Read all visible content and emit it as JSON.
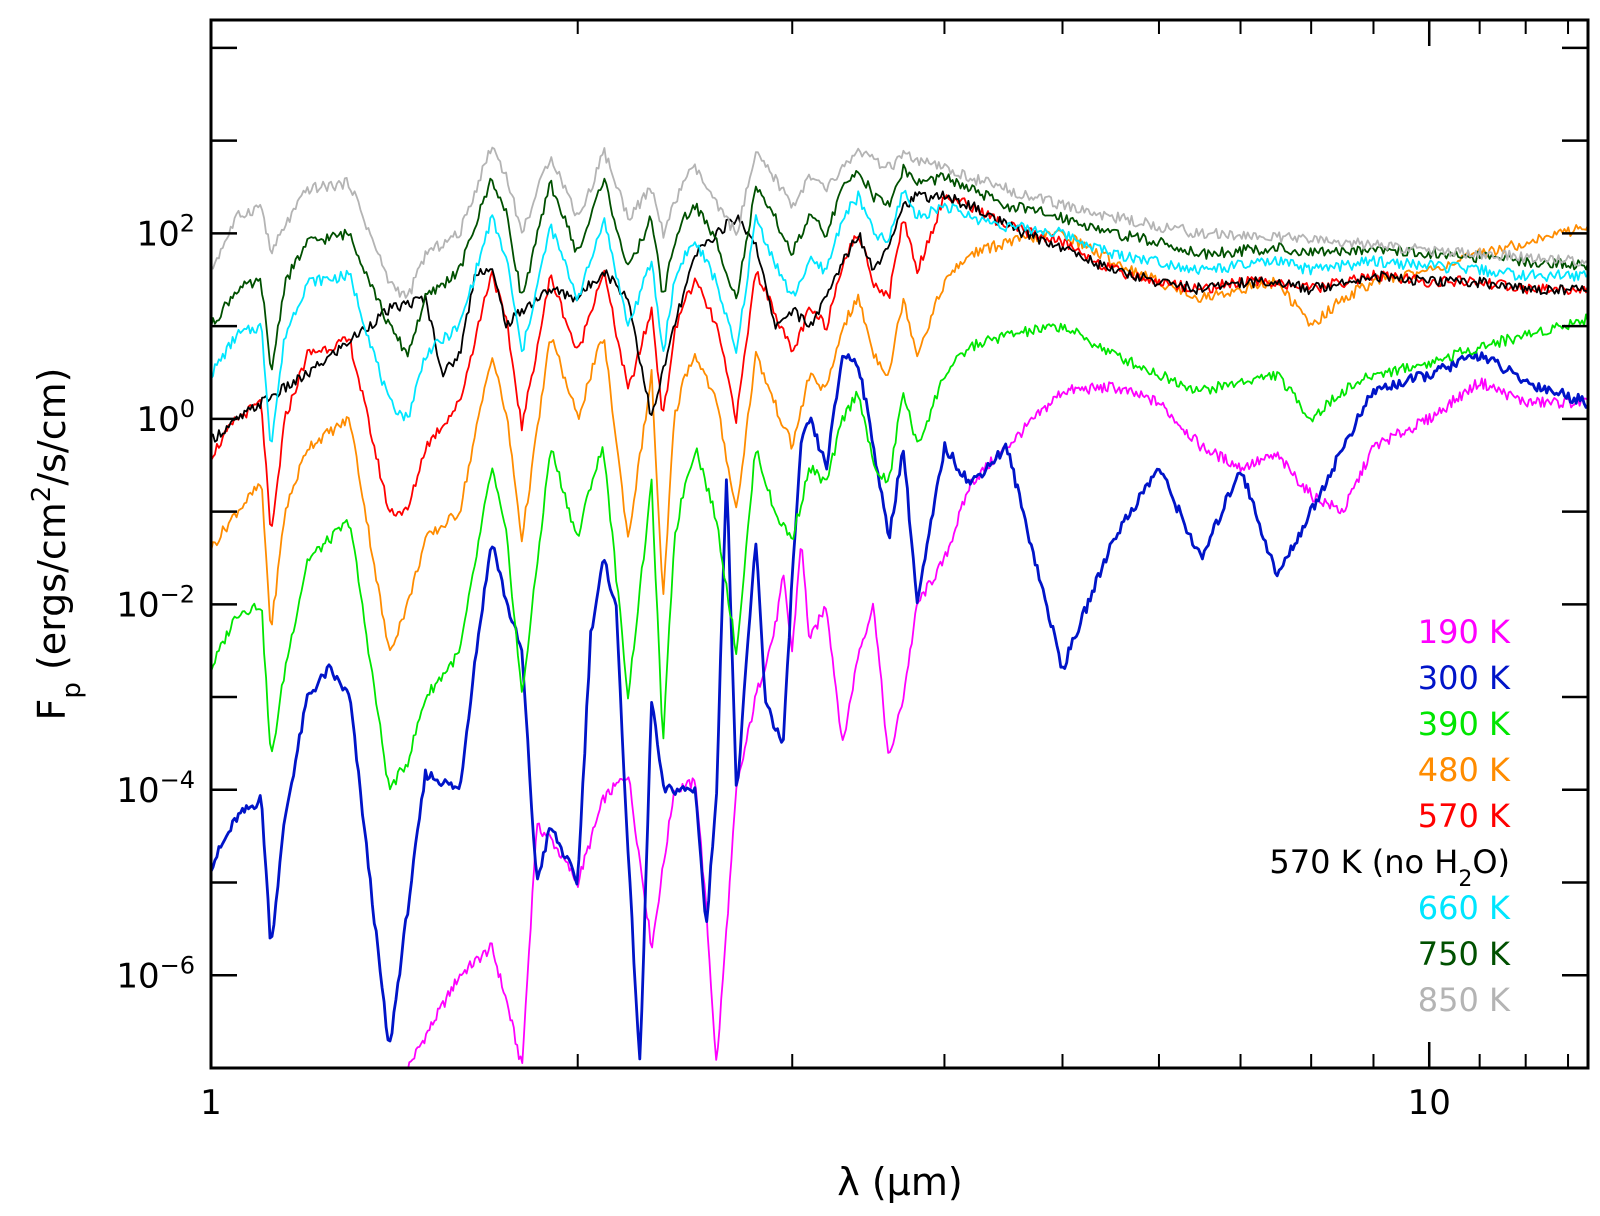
{
  "chart_data": {
    "type": "line",
    "title": "",
    "xlabel": "λ (μm)",
    "ylabel": "F_p (ergs/cm²/s/cm)",
    "x_scale": "log",
    "y_scale": "log",
    "xlim": [
      1.0,
      13.5
    ],
    "ylim": [
      1e-07,
      20000
    ],
    "x_ticks": [
      {
        "value": 1,
        "label": "1"
      },
      {
        "value": 10,
        "label": "10"
      }
    ],
    "y_ticks": [
      {
        "value": 1e-06,
        "base": "10",
        "exp": "−6"
      },
      {
        "value": 0.0001,
        "base": "10",
        "exp": "−4"
      },
      {
        "value": 0.01,
        "base": "10",
        "exp": "−2"
      },
      {
        "value": 1,
        "base": "10",
        "exp": "0"
      },
      {
        "value": 100,
        "base": "10",
        "exp": "2"
      }
    ],
    "grid": false,
    "legend_position": "bottom-right",
    "series": [
      {
        "name": "190 K",
        "color": "#ff00ff",
        "x": [
          1.45,
          1.6,
          1.7,
          1.75,
          1.8,
          1.85,
          1.9,
          2.0,
          2.1,
          2.2,
          2.3,
          2.4,
          2.5,
          2.55,
          2.6,
          2.7,
          2.8,
          2.9,
          2.95,
          3.0,
          3.05,
          3.1,
          3.2,
          3.3,
          3.4,
          3.5,
          3.6,
          3.7,
          3.8,
          4.0,
          4.2,
          4.5,
          5.0,
          5.5,
          6.0,
          6.5,
          7.0,
          7.5,
          8.0,
          8.5,
          9.0,
          10.0,
          11.0,
          12.0,
          13.5
        ],
        "y": [
          1e-07,
          1e-06,
          2e-06,
          5e-07,
          1e-07,
          4e-05,
          3e-05,
          1e-05,
          8e-05,
          0.00015,
          2e-06,
          0.0001,
          0.00012,
          5e-06,
          1e-07,
          0.0001,
          0.001,
          0.005,
          0.02,
          0.003,
          0.05,
          0.004,
          0.01,
          0.0003,
          0.003,
          0.01,
          0.0002,
          0.001,
          0.01,
          0.03,
          0.2,
          0.5,
          2.0,
          2.2,
          1.5,
          0.5,
          0.3,
          0.4,
          0.15,
          0.1,
          0.5,
          1.0,
          2.5,
          1.5,
          1.5
        ]
      },
      {
        "name": "300 K",
        "color": "#0014c8",
        "x": [
          1.0,
          1.05,
          1.1,
          1.12,
          1.15,
          1.2,
          1.25,
          1.3,
          1.4,
          1.5,
          1.6,
          1.65,
          1.7,
          1.75,
          1.8,
          1.85,
          1.9,
          2.0,
          2.05,
          2.1,
          2.15,
          2.2,
          2.25,
          2.3,
          2.35,
          2.4,
          2.45,
          2.5,
          2.55,
          2.6,
          2.65,
          2.7,
          2.8,
          2.85,
          2.9,
          2.95,
          3.0,
          3.05,
          3.1,
          3.2,
          3.3,
          3.4,
          3.5,
          3.6,
          3.7,
          3.8,
          4.0,
          4.2,
          4.5,
          5.0,
          5.5,
          6.0,
          6.5,
          7.0,
          7.5,
          8.0,
          8.5,
          9.0,
          10.0,
          11.0,
          12.0,
          13.5
        ],
        "y": [
          1.5e-05,
          5e-05,
          8e-05,
          2e-06,
          5e-05,
          0.001,
          0.002,
          0.001,
          1.5e-07,
          0.00015,
          0.0001,
          0.003,
          0.05,
          0.01,
          0.003,
          1e-05,
          4e-05,
          1e-05,
          0.005,
          0.03,
          0.01,
          2e-05,
          1e-07,
          0.001,
          0.0001,
          0.0001,
          0.0001,
          0.0001,
          3e-06,
          0.0001,
          0.3,
          8e-05,
          0.05,
          0.001,
          0.0005,
          0.0003,
          0.02,
          0.5,
          1.0,
          0.3,
          5.0,
          4.0,
          0.5,
          0.05,
          0.5,
          0.01,
          0.5,
          0.2,
          0.5,
          0.002,
          0.05,
          0.3,
          0.03,
          0.3,
          0.02,
          0.1,
          0.5,
          2.0,
          3.0,
          5.0,
          2.5,
          1.5
        ]
      },
      {
        "name": "390 K",
        "color": "#00e600",
        "x": [
          1.0,
          1.05,
          1.1,
          1.12,
          1.15,
          1.2,
          1.3,
          1.4,
          1.45,
          1.5,
          1.6,
          1.7,
          1.75,
          1.8,
          1.9,
          2.0,
          2.05,
          2.1,
          2.2,
          2.3,
          2.35,
          2.4,
          2.45,
          2.5,
          2.6,
          2.7,
          2.8,
          2.9,
          3.0,
          3.1,
          3.2,
          3.3,
          3.4,
          3.5,
          3.6,
          3.7,
          3.8,
          4.0,
          4.2,
          4.5,
          5.0,
          5.5,
          6.0,
          6.5,
          7.0,
          7.5,
          8.0,
          8.5,
          9.0,
          10.0,
          11.0,
          12.0,
          13.5
        ],
        "y": [
          0.002,
          0.008,
          0.01,
          0.0002,
          0.002,
          0.03,
          0.08,
          0.0001,
          0.0002,
          0.001,
          0.003,
          0.3,
          0.05,
          0.001,
          0.5,
          0.05,
          0.2,
          0.5,
          0.001,
          0.2,
          0.0003,
          0.05,
          0.2,
          0.5,
          0.08,
          0.003,
          0.5,
          0.1,
          0.05,
          0.3,
          0.2,
          1.0,
          2.0,
          0.3,
          0.2,
          2.0,
          0.5,
          3.0,
          6.0,
          8.0,
          10.0,
          5.0,
          3.0,
          2.0,
          2.5,
          3.0,
          1.0,
          2.0,
          3.0,
          4.0,
          6.0,
          8.0,
          12.0
        ]
      },
      {
        "name": "480 K",
        "color": "#ff8c00",
        "x": [
          1.0,
          1.05,
          1.1,
          1.12,
          1.15,
          1.2,
          1.3,
          1.4,
          1.45,
          1.5,
          1.6,
          1.7,
          1.75,
          1.8,
          1.9,
          2.0,
          2.05,
          2.1,
          2.2,
          2.3,
          2.35,
          2.4,
          2.45,
          2.5,
          2.6,
          2.7,
          2.8,
          2.9,
          3.0,
          3.1,
          3.2,
          3.3,
          3.4,
          3.5,
          3.6,
          3.7,
          3.8,
          4.0,
          4.2,
          4.5,
          5.0,
          5.5,
          6.0,
          6.5,
          7.0,
          7.5,
          8.0,
          8.5,
          9.0,
          10.0,
          11.0,
          12.0,
          13.5
        ],
        "y": [
          0.04,
          0.1,
          0.2,
          0.005,
          0.1,
          0.5,
          1.0,
          0.003,
          0.01,
          0.05,
          0.1,
          5.0,
          1.0,
          0.05,
          8.0,
          1.0,
          3.0,
          8.0,
          0.05,
          3.0,
          0.01,
          1.0,
          3.0,
          5.0,
          1.5,
          0.1,
          5.0,
          1.5,
          0.5,
          3.0,
          2.0,
          10.0,
          20.0,
          5.0,
          3.0,
          20.0,
          5.0,
          30.0,
          60.0,
          80.0,
          100.0,
          50.0,
          30.0,
          20.0,
          25.0,
          30.0,
          10.0,
          20.0,
          30.0,
          40.0,
          60.0,
          80.0,
          120.0
        ]
      },
      {
        "name": "570 K",
        "color": "#ff0000",
        "x": [
          1.0,
          1.05,
          1.1,
          1.12,
          1.15,
          1.2,
          1.3,
          1.4,
          1.45,
          1.5,
          1.6,
          1.7,
          1.75,
          1.8,
          1.9,
          2.0,
          2.05,
          2.1,
          2.2,
          2.3,
          2.35,
          2.4,
          2.45,
          2.5,
          2.6,
          2.7,
          2.8,
          2.9,
          3.0,
          3.1,
          3.2,
          3.3,
          3.4,
          3.5,
          3.6,
          3.7,
          3.8,
          4.0,
          4.2,
          4.5,
          5.0,
          5.5,
          6.0,
          6.5,
          7.0,
          7.5,
          8.0,
          8.5,
          9.0,
          10.0,
          11.0,
          12.0,
          13.5
        ],
        "y": [
          0.4,
          1.0,
          1.5,
          0.05,
          1.0,
          5.0,
          7.0,
          0.1,
          0.1,
          0.5,
          1.5,
          40.0,
          10.0,
          0.8,
          35.0,
          5.0,
          15.0,
          40.0,
          2.0,
          15.0,
          1.0,
          8.0,
          20.0,
          30.0,
          10.0,
          1.0,
          40.0,
          15.0,
          5.0,
          15.0,
          10.0,
          50.0,
          100.0,
          30.0,
          20.0,
          150.0,
          40.0,
          250.0,
          200.0,
          120.0,
          80.0,
          40.0,
          30.0,
          25.0,
          30.0,
          30.0,
          25.0,
          30.0,
          35.0,
          30.0,
          30.0,
          25.0,
          25.0
        ]
      },
      {
        "name": "570 K (no H2O)",
        "label_main": "570 K (no H",
        "label_sub": "2",
        "label_end": "O)",
        "color": "#000000",
        "x": [
          1.0,
          1.1,
          1.2,
          1.3,
          1.4,
          1.5,
          1.55,
          1.6,
          1.65,
          1.7,
          1.75,
          1.8,
          1.9,
          2.0,
          2.1,
          2.2,
          2.3,
          2.4,
          2.5,
          2.6,
          2.7,
          2.8,
          2.9,
          3.0,
          3.1,
          3.2,
          3.3,
          3.4,
          3.5,
          3.6,
          3.7,
          3.8,
          4.0,
          4.2,
          4.5,
          5.0,
          5.5,
          6.0,
          6.5,
          7.0,
          7.5,
          8.0,
          8.5,
          9.0,
          10.0,
          11.0,
          12.0,
          13.5
        ],
        "y": [
          0.6,
          1.5,
          3.0,
          7.0,
          15.0,
          20.0,
          3.0,
          5.0,
          40.0,
          40.0,
          10.0,
          15.0,
          25.0,
          20.0,
          40.0,
          20.0,
          1.0,
          10.0,
          60.0,
          100.0,
          150.0,
          80.0,
          10.0,
          15.0,
          10.0,
          20.0,
          50.0,
          100.0,
          40.0,
          80.0,
          200.0,
          250.0,
          250.0,
          200.0,
          120.0,
          70.0,
          40.0,
          30.0,
          25.0,
          30.0,
          30.0,
          25.0,
          30.0,
          35.0,
          30.0,
          30.0,
          25.0,
          25.0
        ]
      },
      {
        "name": "660 K",
        "color": "#00e6ff",
        "x": [
          1.0,
          1.05,
          1.1,
          1.12,
          1.15,
          1.2,
          1.3,
          1.4,
          1.45,
          1.5,
          1.6,
          1.7,
          1.75,
          1.8,
          1.9,
          2.0,
          2.05,
          2.1,
          2.2,
          2.3,
          2.35,
          2.4,
          2.45,
          2.5,
          2.6,
          2.7,
          2.8,
          2.9,
          3.0,
          3.1,
          3.2,
          3.3,
          3.4,
          3.5,
          3.6,
          3.7,
          3.8,
          4.0,
          4.2,
          4.5,
          5.0,
          5.5,
          6.0,
          6.5,
          7.0,
          7.5,
          8.0,
          8.5,
          9.0,
          10.0,
          11.0,
          12.0,
          13.5
        ],
        "y": [
          3.0,
          8.0,
          10.0,
          0.5,
          8.0,
          30.0,
          35.0,
          1.5,
          1.0,
          5.0,
          10.0,
          150.0,
          50.0,
          5.0,
          120.0,
          20.0,
          50.0,
          150.0,
          10.0,
          50.0,
          5.0,
          30.0,
          60.0,
          80.0,
          30.0,
          5.0,
          150.0,
          50.0,
          20.0,
          50.0,
          40.0,
          150.0,
          250.0,
          100.0,
          80.0,
          300.0,
          150.0,
          200.0,
          150.0,
          120.0,
          100.0,
          60.0,
          50.0,
          40.0,
          45.0,
          50.0,
          40.0,
          45.0,
          50.0,
          45.0,
          40.0,
          35.0,
          35.0
        ]
      },
      {
        "name": "750 K",
        "color": "#005000",
        "x": [
          1.0,
          1.05,
          1.1,
          1.12,
          1.15,
          1.2,
          1.3,
          1.4,
          1.45,
          1.5,
          1.6,
          1.7,
          1.75,
          1.8,
          1.9,
          2.0,
          2.05,
          2.1,
          2.2,
          2.3,
          2.35,
          2.4,
          2.45,
          2.5,
          2.6,
          2.7,
          2.8,
          2.9,
          3.0,
          3.1,
          3.2,
          3.3,
          3.4,
          3.5,
          3.6,
          3.7,
          3.8,
          4.0,
          4.2,
          4.5,
          5.0,
          5.5,
          6.0,
          6.5,
          7.0,
          7.5,
          8.0,
          8.5,
          9.0,
          10.0,
          11.0,
          12.0,
          13.5
        ],
        "y": [
          10.0,
          25.0,
          30.0,
          3.0,
          30.0,
          80.0,
          100.0,
          10.0,
          5.0,
          20.0,
          40.0,
          400.0,
          150.0,
          20.0,
          350.0,
          60.0,
          150.0,
          400.0,
          40.0,
          150.0,
          20.0,
          80.0,
          150.0,
          200.0,
          80.0,
          20.0,
          300.0,
          150.0,
          60.0,
          150.0,
          100.0,
          300.0,
          500.0,
          250.0,
          200.0,
          500.0,
          350.0,
          400.0,
          300.0,
          200.0,
          150.0,
          100.0,
          80.0,
          60.0,
          65.0,
          70.0,
          60.0,
          65.0,
          70.0,
          60.0,
          55.0,
          50.0,
          45.0
        ]
      },
      {
        "name": "850 K",
        "color": "#b4b4b4",
        "x": [
          1.0,
          1.05,
          1.1,
          1.12,
          1.15,
          1.2,
          1.3,
          1.4,
          1.45,
          1.5,
          1.6,
          1.7,
          1.75,
          1.8,
          1.9,
          2.0,
          2.05,
          2.1,
          2.2,
          2.3,
          2.35,
          2.4,
          2.45,
          2.5,
          2.6,
          2.7,
          2.8,
          2.9,
          3.0,
          3.1,
          3.2,
          3.3,
          3.4,
          3.5,
          3.6,
          3.7,
          3.8,
          4.0,
          4.2,
          4.5,
          5.0,
          5.5,
          6.0,
          6.5,
          7.0,
          7.5,
          8.0,
          8.5,
          9.0,
          10.0,
          11.0,
          12.0,
          13.5
        ],
        "y": [
          40.0,
          150.0,
          200.0,
          60.0,
          120.0,
          300.0,
          350.0,
          30.0,
          20.0,
          60.0,
          100.0,
          900.0,
          400.0,
          100.0,
          700.0,
          150.0,
          300.0,
          800.0,
          150.0,
          300.0,
          100.0,
          200.0,
          400.0,
          500.0,
          200.0,
          100.0,
          700.0,
          400.0,
          200.0,
          400.0,
          300.0,
          500.0,
          800.0,
          600.0,
          500.0,
          700.0,
          600.0,
          500.0,
          400.0,
          300.0,
          200.0,
          150.0,
          120.0,
          100.0,
          95.0,
          90.0,
          85.0,
          80.0,
          75.0,
          65.0,
          60.0,
          55.0,
          50.0
        ]
      }
    ]
  }
}
